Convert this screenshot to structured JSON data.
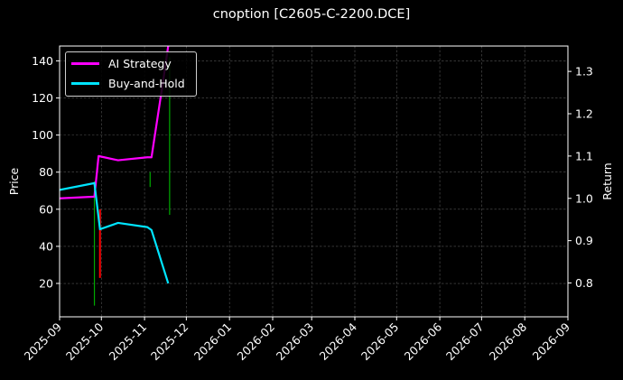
{
  "title": "cnoption [C2605-C-2200.DCE]",
  "legend": [
    {
      "label": "AI Strategy",
      "color": "#ff00ff"
    },
    {
      "label": "Buy-and-Hold",
      "color": "#00e5ff"
    }
  ],
  "axes": {
    "left_label": "Price",
    "right_label": "Return",
    "left_ticks": [
      "20",
      "40",
      "60",
      "80",
      "100",
      "120",
      "140"
    ],
    "right_ticks": [
      "0.8",
      "0.9",
      "1.0",
      "1.1",
      "1.2",
      "1.3"
    ],
    "x_ticks": [
      "2025-09",
      "2025-10",
      "2025-11",
      "2025-12",
      "2026-01",
      "2026-02",
      "2026-03",
      "2026-04",
      "2026-05",
      "2026-06",
      "2026-07",
      "2026-08",
      "2026-09"
    ]
  },
  "chart_data": {
    "type": "line",
    "title": "cnoption [C2605-C-2200.DCE]",
    "xlabel": "",
    "ylabel": "Price",
    "ylabel_right": "Return",
    "ylim": [
      2,
      148
    ],
    "ylim_right": [
      0.72,
      1.36
    ],
    "xlim": [
      "2025-09-01",
      "2026-09-01"
    ],
    "grid": true,
    "legend_position": "upper left",
    "x_ticks": [
      "2025-09",
      "2025-10",
      "2025-11",
      "2025-12",
      "2026-01",
      "2026-02",
      "2026-03",
      "2026-04",
      "2026-05",
      "2026-06",
      "2026-07",
      "2026-08",
      "2026-09"
    ],
    "series": [
      {
        "name": "AI Strategy",
        "axis": "right",
        "color": "#ff00ff",
        "x": [
          "2025-09-01",
          "2025-09-26",
          "2025-09-29",
          "2025-10-13",
          "2025-11-03",
          "2025-11-06",
          "2025-11-14",
          "2025-11-18"
        ],
        "values": [
          1.0,
          1.004,
          1.1,
          1.09,
          1.097,
          1.097,
          1.27,
          1.36
        ]
      },
      {
        "name": "Buy-and-Hold",
        "axis": "right",
        "color": "#00e5ff",
        "x": [
          "2025-09-01",
          "2025-09-26",
          "2025-09-30",
          "2025-10-13",
          "2025-11-03",
          "2025-11-06",
          "2025-11-18"
        ],
        "values": [
          1.02,
          1.036,
          0.927,
          0.942,
          0.932,
          0.925,
          0.799
        ]
      }
    ],
    "candles": [
      {
        "x": "2025-09-26",
        "color": "#00aa00",
        "low": 8,
        "high": 75
      },
      {
        "x": "2025-09-30",
        "color": "#ff0000",
        "low": 23,
        "high": 60
      },
      {
        "x": "2025-11-05",
        "color": "#00aa00",
        "low": 72,
        "high": 80
      },
      {
        "x": "2025-11-19",
        "color": "#00aa00",
        "low": 57,
        "high": 142
      }
    ]
  }
}
